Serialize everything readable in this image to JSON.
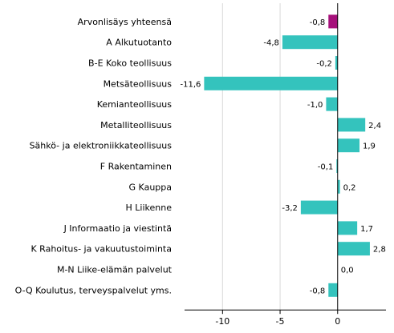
{
  "chart_data": {
    "type": "bar",
    "orientation": "horizontal",
    "categories": [
      "Arvonlisäys yhteensä",
      "A Alkutuotanto",
      "B-E Koko teollisuus",
      "Metsäteollisuus",
      "Kemianteollisuus",
      "Metalliteollisuus",
      "Sähkö- ja elektroniikkateollisuus",
      "F Rakentaminen",
      "G Kauppa",
      "H Liikenne",
      "J Informaatio ja viestintä",
      "K Rahoitus- ja vakuutustoiminta",
      "M-N Liike-elämän palvelut",
      "O-Q Koulutus, terveyspalvelut yms."
    ],
    "values": [
      -0.8,
      -4.8,
      -0.2,
      -11.6,
      -1.0,
      2.4,
      1.9,
      -0.1,
      0.2,
      -3.2,
      1.7,
      2.8,
      0.0,
      -0.8
    ],
    "value_labels": [
      "-0,8",
      "-4,8",
      "-0,2",
      "-11,6",
      "-1,0",
      "2,4",
      "1,9",
      "-0,1",
      "0,2",
      "-3,2",
      "1,7",
      "2,8",
      "0,0",
      "-0,8"
    ],
    "xlim": [
      -13.3,
      4.2
    ],
    "x_ticks": [
      -10,
      -5,
      0
    ],
    "x_tick_labels": [
      "-10",
      "-5",
      "0"
    ],
    "grid": "vertical",
    "colors": {
      "bar": "#34c3bd",
      "highlight_bar": "#a6117b",
      "grid": "#d9d9d9",
      "axis": "#000000"
    },
    "highlight_index": 0
  }
}
